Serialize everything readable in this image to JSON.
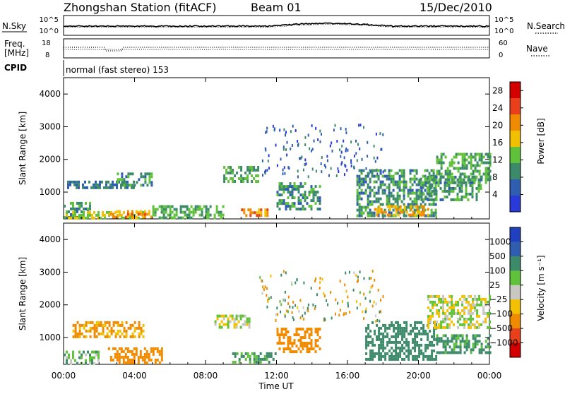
{
  "header": {
    "station": "Zhongshan Station (fitACF)",
    "beam": "Beam 01",
    "date": "15/Dec/2010"
  },
  "aux": {
    "nsky_label": "N.Sky",
    "nsearch_label": "N.Search",
    "freq_label": "Freq.",
    "freq_unit": "[MHz]",
    "nave_label": "Nave",
    "cpid_label": "CPID",
    "cpid_text": "normal (fast stereo) 153",
    "noise_ticks": [
      "10^5",
      "10^0"
    ],
    "freq_ticks": [
      "18",
      "8"
    ],
    "nave_ticks": [
      "60",
      "0"
    ]
  },
  "chart_data": [
    {
      "type": "heatmap",
      "title": "Power",
      "xlabel": "",
      "ylabel": "Slant Range [km]",
      "ylim": [
        180,
        4500
      ],
      "yticks": [
        "1000",
        "2000",
        "3000",
        "4000"
      ],
      "colorbar_label": "Power [dB]",
      "colorbar_ticks": [
        "4",
        "8",
        "12",
        "16",
        "20",
        "24",
        "28"
      ],
      "colorbar_range": [
        0,
        30
      ],
      "colors": [
        "#2a3ad8",
        "#2f5eb0",
        "#3c8a6a",
        "#5fc23a",
        "#f2c000",
        "#f08a00",
        "#e8401a",
        "#d40000"
      ],
      "echo_regions": [
        {
          "t": [
            0.0,
            1.5
          ],
          "r": [
            200,
            700
          ],
          "db": 10
        },
        {
          "t": [
            0.0,
            4.5
          ],
          "r": [
            200,
            420
          ],
          "db": 16
        },
        {
          "t": [
            2.5,
            5.0
          ],
          "r": [
            250,
            450
          ],
          "db": 22
        },
        {
          "t": [
            0.2,
            4.0
          ],
          "r": [
            1100,
            1350
          ],
          "db": 8
        },
        {
          "t": [
            3.0,
            5.0
          ],
          "r": [
            1200,
            1600
          ],
          "db": 10
        },
        {
          "t": [
            5.0,
            9.0
          ],
          "r": [
            200,
            600
          ],
          "db": 12
        },
        {
          "t": [
            9.0,
            11.0
          ],
          "r": [
            1300,
            1800
          ],
          "db": 12
        },
        {
          "t": [
            10.0,
            11.5
          ],
          "r": [
            250,
            500
          ],
          "db": 22
        },
        {
          "t": [
            12.0,
            14.5
          ],
          "r": [
            500,
            1300
          ],
          "db": 10
        },
        {
          "t": [
            16.5,
            21.0
          ],
          "r": [
            300,
            1700
          ],
          "db": 10
        },
        {
          "t": [
            17.5,
            20.5
          ],
          "r": [
            300,
            600
          ],
          "db": 20
        },
        {
          "t": [
            21.0,
            24.0
          ],
          "r": [
            1300,
            2200
          ],
          "db": 12
        },
        {
          "t": [
            20.0,
            23.5
          ],
          "r": [
            800,
            1500
          ],
          "db": 11
        }
      ]
    },
    {
      "type": "heatmap",
      "title": "Velocity",
      "xlabel": "Time UT",
      "ylabel": "Slant Range [km]",
      "ylim": [
        180,
        4500
      ],
      "yticks": [
        "1000",
        "2000",
        "3000",
        "4000"
      ],
      "xticks": [
        "00:00",
        "04:00",
        "08:00",
        "12:00",
        "16:00",
        "20:00",
        "00:00"
      ],
      "colorbar_label": "Velocity [m s⁻¹]",
      "colorbar_ticks": [
        "1000",
        "500",
        "100",
        "25",
        "−25",
        "−100",
        "−500",
        "−1000"
      ],
      "colors": [
        "#2140c0",
        "#2f5eb0",
        "#3c8a6a",
        "#5fc23a",
        "#c8c8c0",
        "#f2c000",
        "#f08a00",
        "#e8401a",
        "#d40000"
      ],
      "echo_regions": [
        {
          "t": [
            0.0,
            2.0
          ],
          "r": [
            250,
            600
          ],
          "v": 80
        },
        {
          "t": [
            2.5,
            5.5
          ],
          "r": [
            250,
            700
          ],
          "v": -300
        },
        {
          "t": [
            0.5,
            4.5
          ],
          "r": [
            1000,
            1500
          ],
          "v": -120
        },
        {
          "t": [
            8.5,
            10.5
          ],
          "r": [
            1300,
            1700
          ],
          "v": 0
        },
        {
          "t": [
            9.5,
            12.0
          ],
          "r": [
            250,
            550
          ],
          "v": 120
        },
        {
          "t": [
            12.0,
            14.5
          ],
          "r": [
            600,
            1300
          ],
          "v": -200
        },
        {
          "t": [
            17.0,
            21.0
          ],
          "r": [
            300,
            1500
          ],
          "v": 200
        },
        {
          "t": [
            20.5,
            24.0
          ],
          "r": [
            1300,
            2300
          ],
          "v": 0
        },
        {
          "t": [
            21.0,
            24.0
          ],
          "r": [
            500,
            1100
          ],
          "v": 150
        }
      ]
    }
  ]
}
